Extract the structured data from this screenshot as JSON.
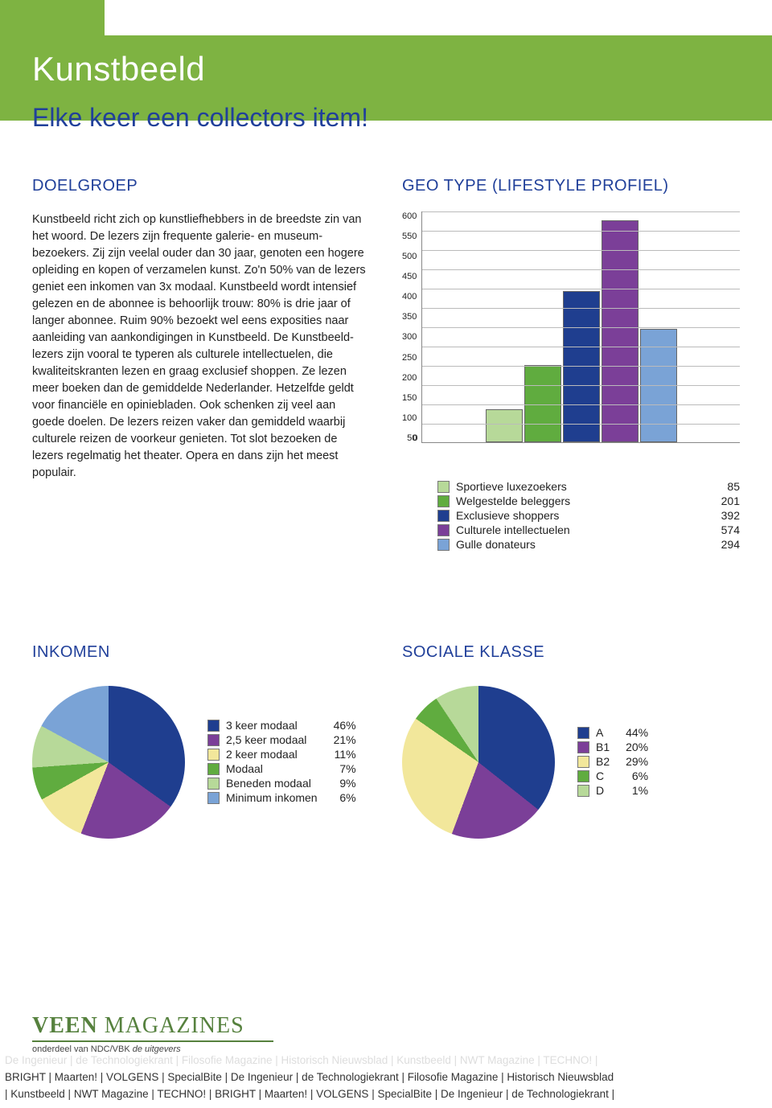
{
  "header": {
    "title": "Kunstbeeld",
    "subtitle": "Elke keer een collectors item!",
    "band_color": "#7eb342",
    "title_color": "#ffffff",
    "subtitle_color": "#21409a"
  },
  "doelgroep": {
    "heading": "DOELGROEP",
    "text": "Kunstbeeld richt zich op kunstliefhebbers in de breedste zin van het woord. De lezers zijn frequente galerie- en museum-bezoekers. Zij zijn veelal ouder dan 30 jaar, genoten een hogere opleiding en kopen of verzamelen kunst. Zo'n 50% van de lezers geniet een inkomen van 3x modaal. Kunstbeeld wordt intensief gelezen en de abonnee is behoorlijk trouw: 80% is drie jaar of langer abonnee. Ruim 90% bezoekt wel eens exposities naar aanleiding van aankondigingen in Kunstbeeld. De Kunstbeeld-lezers zijn vooral te typeren als culturele intellectuelen, die kwaliteitskranten lezen en graag exclusief shoppen. Ze lezen meer boeken dan de gemiddelde Nederlander. Hetzelfde geldt voor financiële en opiniebladen. Ook schenken zij veel aan goede doelen. De lezers reizen vaker dan gemiddeld waarbij culturele reizen de voorkeur genieten. Tot slot bezoeken de lezers regelmatig het theater. Opera en dans zijn het meest populair."
  },
  "geo": {
    "heading": "GEO TYPE (LIFESTYLE PROFIEL)",
    "type": "bar",
    "ylim": [
      0,
      600
    ],
    "ytick_step": 50,
    "yticks": [
      "600",
      "550",
      "500",
      "450",
      "400",
      "350",
      "300",
      "250",
      "200",
      "150",
      "100",
      "50"
    ],
    "zero_label": "0",
    "grid_color": "#bbbbbb",
    "axis_color": "#888888",
    "bar_border": "#666666",
    "bars": [
      {
        "label": "Sportieve luxezoekers",
        "value": 85,
        "color": "#b7d999"
      },
      {
        "label": "Welgestelde beleggers",
        "value": 201,
        "color": "#60ac3f"
      },
      {
        "label": "Exclusieve shoppers",
        "value": 392,
        "color": "#1f3e8f"
      },
      {
        "label": "Culturele intellectuelen",
        "value": 574,
        "color": "#7b3f98"
      },
      {
        "label": "Gulle donateurs",
        "value": 294,
        "color": "#7aa3d6"
      }
    ]
  },
  "inkomen": {
    "heading": "INKOMEN",
    "type": "pie",
    "slices": [
      {
        "label": "3 keer modaal",
        "value": 46,
        "display": "46%",
        "color": "#1f3e8f"
      },
      {
        "label": "2,5 keer modaal",
        "value": 21,
        "display": "21%",
        "color": "#7b3f98"
      },
      {
        "label": "2 keer modaal",
        "value": 11,
        "display": "11%",
        "color": "#f2e79b"
      },
      {
        "label": "Modaal",
        "value": 7,
        "display": "7%",
        "color": "#60ac3f"
      },
      {
        "label": "Beneden modaal",
        "value": 9,
        "display": "9%",
        "color": "#b7d999"
      },
      {
        "label": "Minimum inkomen",
        "value": 6,
        "display": "6%",
        "color": "#7aa3d6"
      }
    ]
  },
  "klasse": {
    "heading": "SOCIALE KLASSE",
    "type": "pie",
    "slices": [
      {
        "label": "A",
        "value": 44,
        "display": "44%",
        "color": "#1f3e8f"
      },
      {
        "label": "B1",
        "value": 20,
        "display": "20%",
        "color": "#7b3f98"
      },
      {
        "label": "B2",
        "value": 29,
        "display": "29%",
        "color": "#f2e79b"
      },
      {
        "label": "C",
        "value": 6,
        "display": "6%",
        "color": "#60ac3f"
      },
      {
        "label": "D",
        "value": 1,
        "display": "1%",
        "color": "#b7d999"
      }
    ]
  },
  "footer": {
    "logo_bold": "VEEN",
    "logo_rest": " MAGAZINES",
    "logo_color": "#56813e",
    "tagline_prefix": "onderdeel van NDC/VBK ",
    "tagline_ital": "de uitgevers",
    "ghost_line": "De Ingenieur | de Technologiekrant | Filosofie Magazine | Historisch Nieuwsblad | Kunstbeeld | NWT Magazine | TECHNO! |",
    "line2": "BRIGHT | Maarten! | VOLGENS | SpecialBite | De Ingenieur | de Technologiekrant | Filosofie Magazine | Historisch Nieuwsblad",
    "line3": "| Kunstbeeld | NWT Magazine | TECHNO! | BRIGHT | Maarten! | VOLGENS | SpecialBite | De Ingenieur | de Technologiekrant |"
  }
}
